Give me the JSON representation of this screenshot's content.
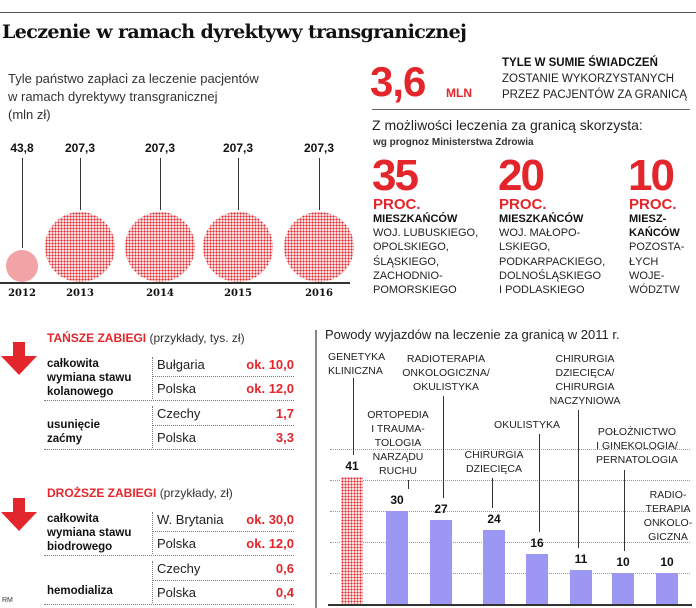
{
  "title": "Leczenie w ramach dyrektywy transgranicznej",
  "subtitle": "Tyle państwo zapłaci za leczenie pacjentów\nw ramach dyrektywy transgranicznej\n(mln zł)",
  "summary": {
    "value": "3,6",
    "unit": "MLN",
    "line1": "TYLE W SUMIE ŚWIADCZEŃ",
    "line2": "ZOSTANIE WYKORZYSTANYCH",
    "line3": "PRZEZ PACJENTÓW ZA GRANICĄ"
  },
  "forecast": {
    "heading": "Z możliwości leczenia za granicą skorzysta:",
    "source": "wg prognoz Ministerstwa Zdrowia",
    "items": [
      {
        "value": "35",
        "unit": "PROC.",
        "bold": "MIESZKAŃCÓW",
        "text": "WOJ. LUBUSKIEGO,\nOPOLSKIEGO,\nŚLĄSKIEGO,\nZACHODNIO-\nPOMORSKIEGO"
      },
      {
        "value": "20",
        "unit": "PROC.",
        "bold": "MIESZKAŃCÓW",
        "text": "WOJ. MAŁOPO-\nLSKIEGO,\nPODKARPACKIEGO,\nDOLNOŚLĄSKIEGO\nI PODLASKIEGO"
      },
      {
        "value": "10",
        "unit": "PROC.",
        "bold": "MIESZ-\nKAŃCÓW",
        "text": "POZOSTA-\nŁYCH\nWOJE-\nWÓDZTW"
      }
    ]
  },
  "cheaper": {
    "heading": "TAŃSZE ZABIEGI",
    "note": "(przykłady, tys. zł)",
    "rows": [
      {
        "procedure": "całkowita\nwymiana stawu\nkolanowego",
        "entries": [
          {
            "country": "Bułgaria",
            "value": "ok. 10,0"
          },
          {
            "country": "Polska",
            "value": "ok. 12,0"
          }
        ]
      },
      {
        "procedure": "usunięcie\nzaćmy",
        "entries": [
          {
            "country": "Czechy",
            "value": "1,7"
          },
          {
            "country": "Polska",
            "value": "3,3"
          }
        ]
      }
    ]
  },
  "pricier": {
    "heading": "DROŻSZE ZABIEGI",
    "note": "(przykłady, zł)",
    "rows": [
      {
        "procedure": "całkowita\nwymiana stawu\nbiodrowego",
        "entries": [
          {
            "country": "W. Brytania",
            "value": "ok. 30,0"
          },
          {
            "country": "Polska",
            "value": "ok. 12,0"
          }
        ]
      },
      {
        "procedure": "hemodializa",
        "entries": [
          {
            "country": "Czechy",
            "value": "0,6"
          },
          {
            "country": "Polska",
            "value": "0,4"
          }
        ]
      }
    ]
  },
  "credit": "RM",
  "colors": {
    "accent": "#e3262b",
    "bar": "#9b97f2",
    "circle_light": "#f2a3a6"
  },
  "chart_data": [
    {
      "type": "bubble",
      "title": "Tyle państwo zapłaci za leczenie pacjentów w ramach dyrektywy transgranicznej (mln zł)",
      "categories": [
        "2012",
        "2013",
        "2014",
        "2015",
        "2016"
      ],
      "values": [
        43.8,
        207.3,
        207.3,
        207.3,
        207.3
      ],
      "value_labels": [
        "43,8",
        "207,3",
        "207,3",
        "207,3",
        "207,3"
      ]
    },
    {
      "type": "bar",
      "title": "Powody wyjazdów na leczenie za granicą w 2011 r.",
      "categories": [
        "GENETYKA\nKLINICZNA",
        "ORTOPEDIA\nI TRAUMA-\nTOLOGIA\nNARZĄDU\nRUCHU",
        "RADIOTERAPIA\nONKOLOGICZNA/\nOKULISTYKA",
        "CHIRURGIA\nDZIECIĘCA",
        "OKULISTYKA",
        "CHIRURGIA\nDZIECIĘCA/\nCHIRURGIA\nNACZYNIOWA",
        "POŁOŻNICTWO\nI GINEKOLOGIA/\nPERNATOLOGIA",
        "RADIO-\nTERAPIA\nONKOLO-\nGICZNA"
      ],
      "values": [
        41,
        30,
        27,
        24,
        16,
        11,
        10,
        10
      ],
      "ylim": [
        0,
        50
      ],
      "grid": true
    }
  ]
}
